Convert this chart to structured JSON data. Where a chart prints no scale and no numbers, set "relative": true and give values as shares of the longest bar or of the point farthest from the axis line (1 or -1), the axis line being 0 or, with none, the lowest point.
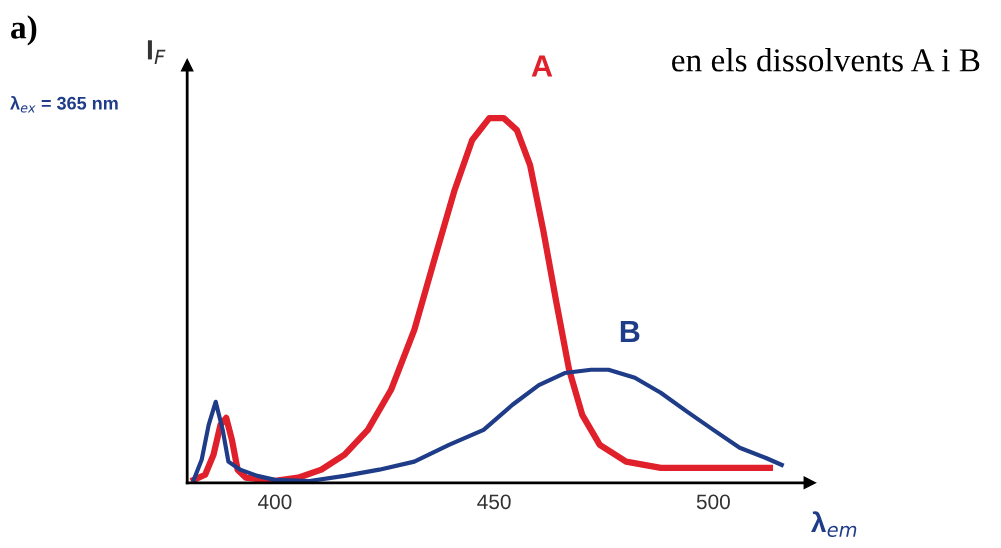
{
  "chart_data": {
    "type": "line",
    "relative": true,
    "title": "en els dissolvents A i B",
    "xlabel": "λ$_{em}$",
    "ylabel": "I$_{F}$",
    "annotations": [
      "a)",
      "λ$_{ex}$ = 365 nm"
    ],
    "xlim": [
      380,
      522
    ],
    "xticks": [
      400,
      450,
      500
    ],
    "grid": false,
    "legend": false,
    "marker": "none",
    "line_style": "solid",
    "series": [
      {
        "name": "A",
        "color": "#e0202a",
        "x": [
          381.5,
          384.1,
          386.0,
          387.6,
          388.9,
          390.2,
          391.5,
          393.4,
          397.4,
          400,
          405.3,
          410.6,
          415.9,
          421.2,
          426.5,
          431.8,
          437.0,
          441.0,
          445.0,
          448.9,
          452.2,
          455.2,
          458.2,
          461.2,
          464.1,
          467.1,
          470.1,
          474.1,
          480.1,
          488.0,
          500,
          512.9
        ],
        "values": [
          0.008,
          0.022,
          0.077,
          0.159,
          0.178,
          0.118,
          0.036,
          0.014,
          0.008,
          0.005,
          0.014,
          0.036,
          0.077,
          0.145,
          0.255,
          0.419,
          0.638,
          0.803,
          0.94,
          1,
          1,
          0.967,
          0.871,
          0.693,
          0.501,
          0.31,
          0.186,
          0.104,
          0.058,
          0.041,
          0.041,
          0.041
        ]
      },
      {
        "name": "B",
        "color": "#1f3c88",
        "x": [
          381.5,
          383.3,
          384.9,
          386.5,
          388.1,
          389.4,
          392.1,
          396.0,
          400,
          407.9,
          415.9,
          423.8,
          431.8,
          439.7,
          447.6,
          454.2,
          460.2,
          466.1,
          472.1,
          476.1,
          482.1,
          488.0,
          494.0,
          500,
          506.0,
          512.0,
          515.6
        ],
        "values": [
          0.008,
          0.063,
          0.159,
          0.222,
          0.145,
          0.058,
          0.036,
          0.019,
          0.008,
          0.005,
          0.019,
          0.036,
          0.058,
          0.104,
          0.145,
          0.214,
          0.268,
          0.301,
          0.31,
          0.31,
          0.288,
          0.247,
          0.195,
          0.145,
          0.096,
          0.068,
          0.049
        ]
      }
    ]
  }
}
